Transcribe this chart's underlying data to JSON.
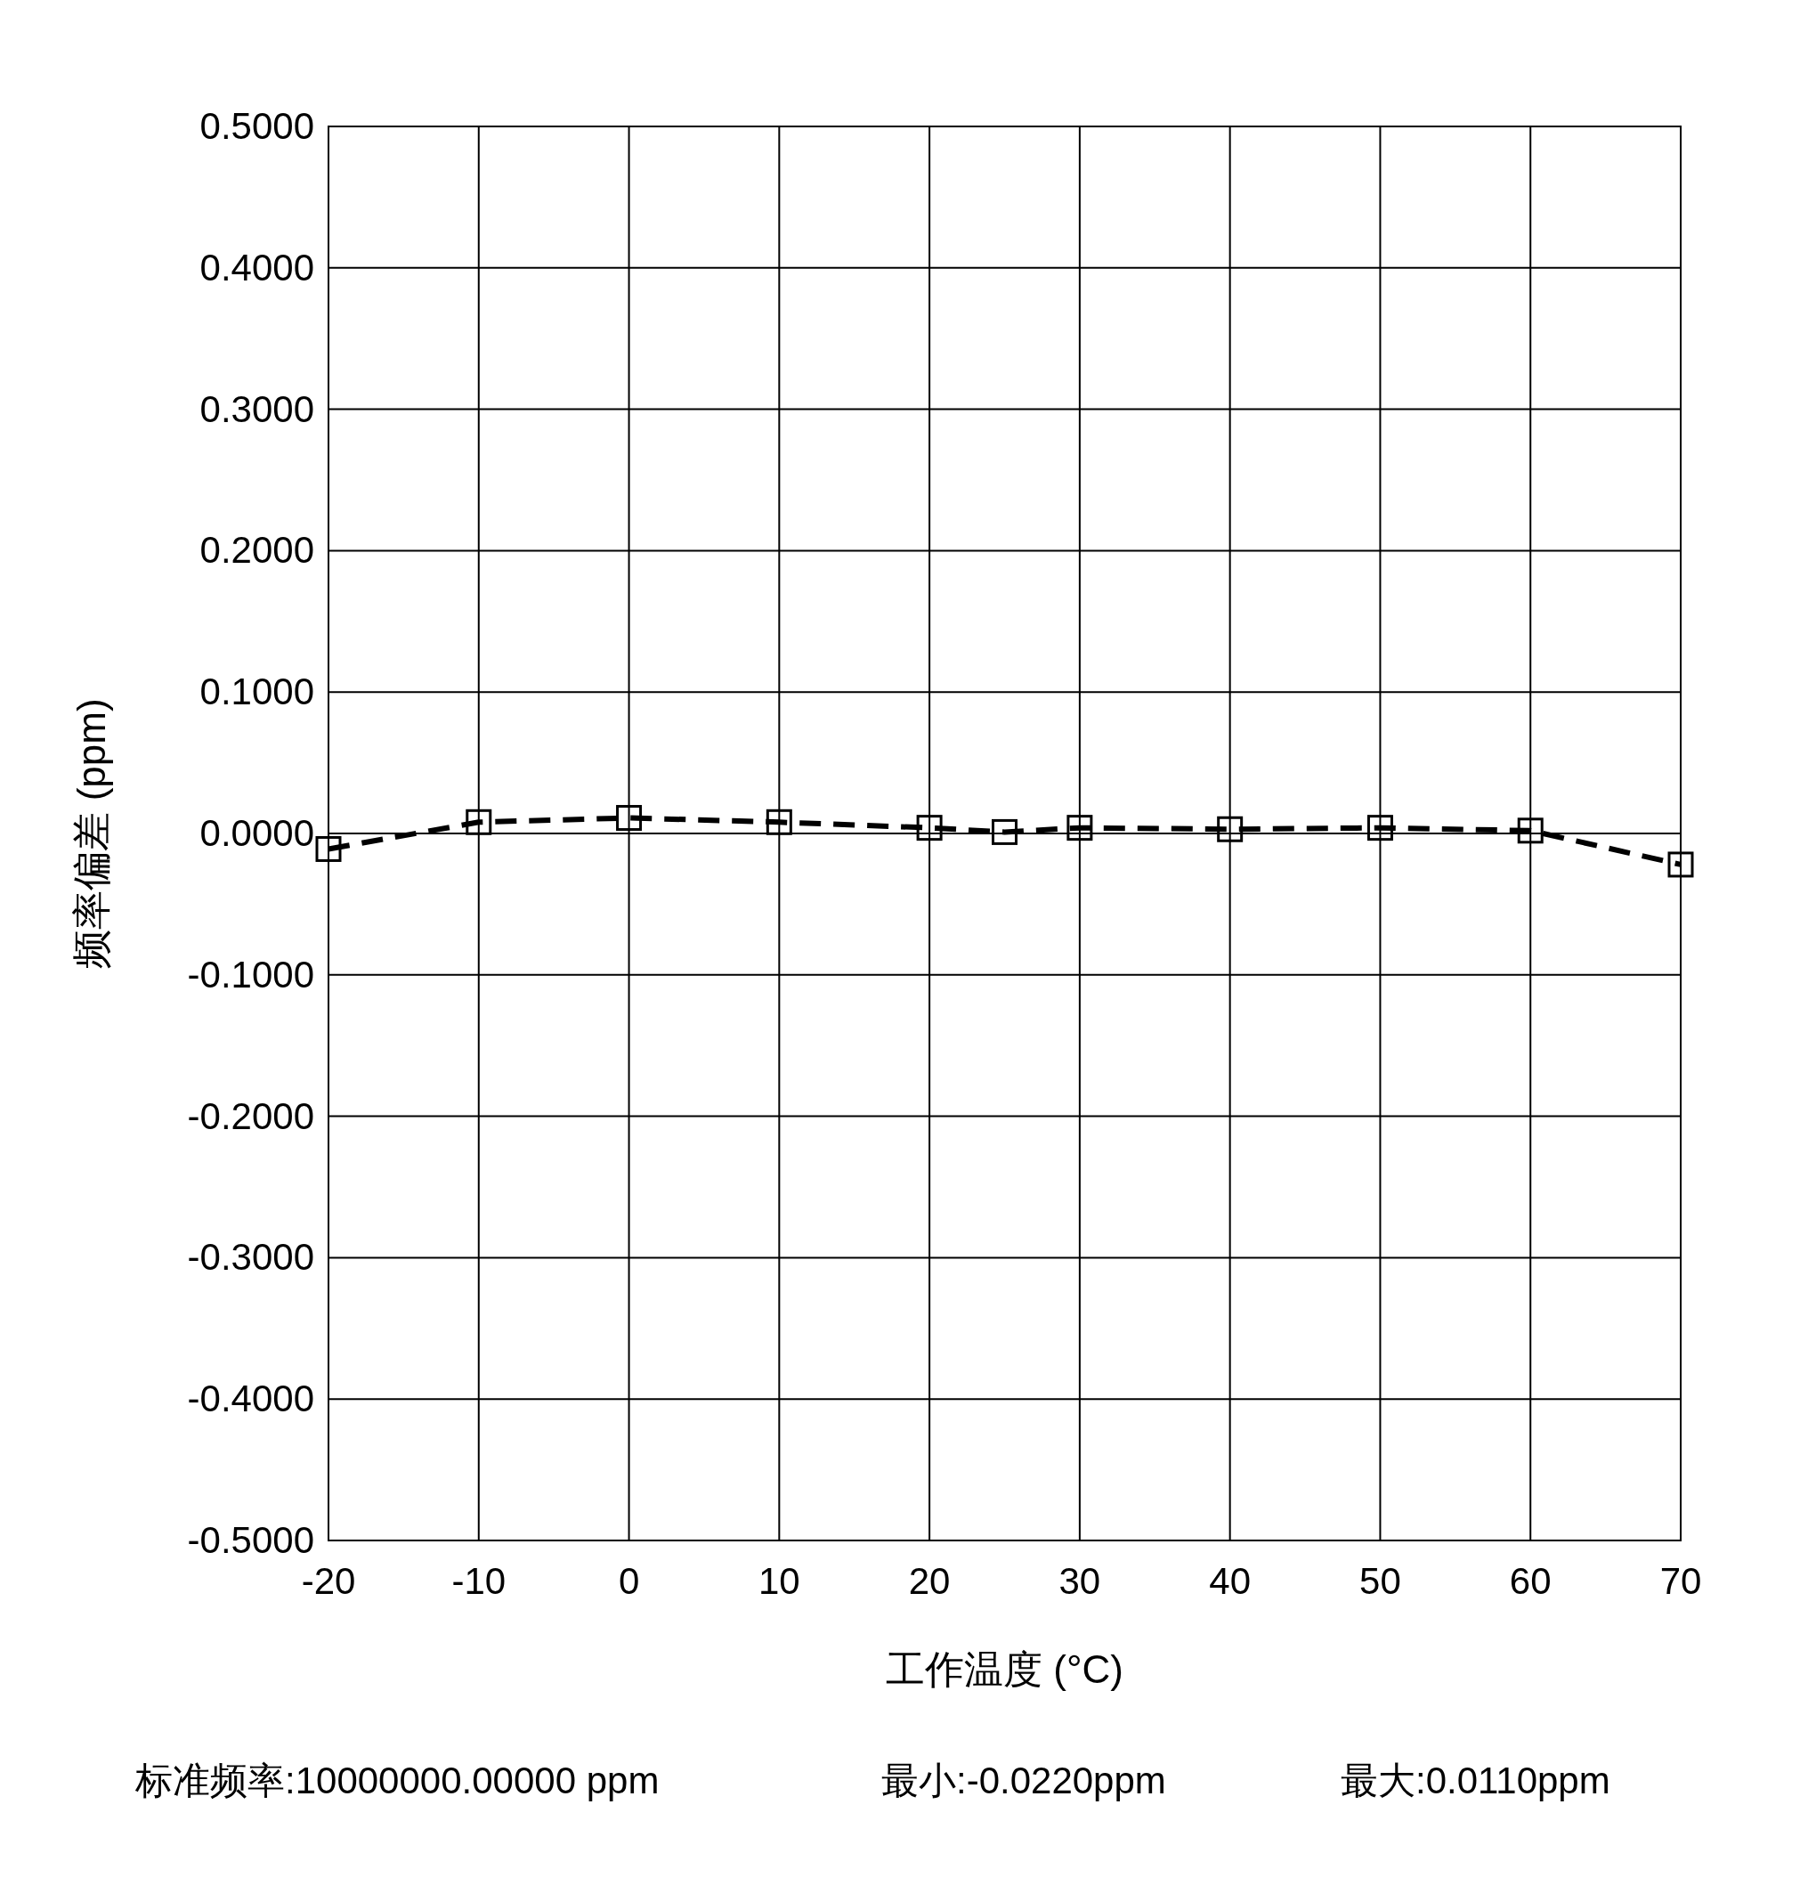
{
  "chart_data": {
    "type": "line",
    "xlabel": "工作温度 (°C)",
    "ylabel": "频率偏差 (ppm)",
    "x": [
      -20,
      -10,
      0,
      10,
      20,
      25,
      30,
      40,
      50,
      60,
      70
    ],
    "values": [
      -0.011,
      0.008,
      0.011,
      0.008,
      0.004,
      0.001,
      0.004,
      0.003,
      0.004,
      0.002,
      -0.022
    ],
    "color": "#000000",
    "marker": "square",
    "line_style": "dashed",
    "grid": true,
    "xlim": [
      -20,
      70
    ],
    "ylim": [
      -0.5,
      0.5
    ],
    "xticks": [
      -20,
      -10,
      0,
      10,
      20,
      30,
      40,
      50,
      60,
      70
    ],
    "yticks": [
      {
        "value": -0.5,
        "label": "-0.5000"
      },
      {
        "value": -0.4,
        "label": "-0.4000"
      },
      {
        "value": -0.3,
        "label": "-0.3000"
      },
      {
        "value": -0.2,
        "label": "-0.2000"
      },
      {
        "value": -0.1,
        "label": "-0.1000"
      },
      {
        "value": 0,
        "label": "0.0000"
      },
      {
        "value": 0.1,
        "label": "0.1000"
      },
      {
        "value": 0.2,
        "label": "0.2000"
      },
      {
        "value": 0.3,
        "label": "0.3000"
      },
      {
        "value": 0.4,
        "label": "0.4000"
      },
      {
        "value": 0.5,
        "label": "0.5000"
      }
    ],
    "annotations": [
      "标准频率:10000000.00000 ppm",
      "最小:-0.0220ppm",
      "最大:0.0110ppm"
    ]
  }
}
